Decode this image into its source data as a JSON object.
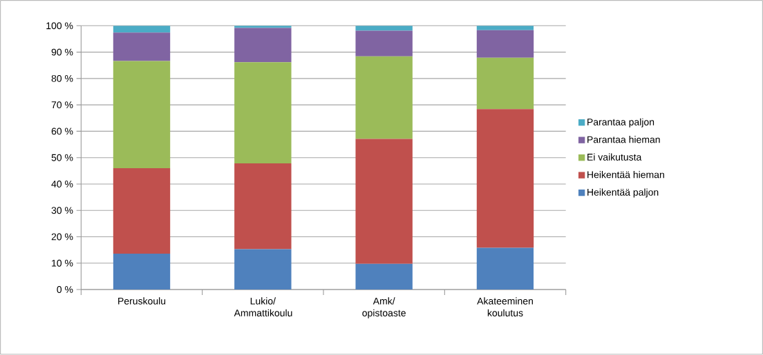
{
  "chart_data": {
    "type": "bar",
    "stacked": true,
    "categories": [
      "Peruskoulu",
      "Lukio/ Ammattikoulu",
      "Amk/ opistoaste",
      "Akateeminen koulutus"
    ],
    "series": [
      {
        "name": "Heikentää paljon",
        "color": "#4f81bd",
        "values": [
          13.6,
          15.3,
          9.7,
          15.8
        ]
      },
      {
        "name": "Heikentää hieman",
        "color": "#c0504d",
        "values": [
          32.4,
          32.5,
          47.4,
          52.6
        ]
      },
      {
        "name": "Ei vaikutusta",
        "color": "#9bbb59",
        "values": [
          40.6,
          38.4,
          31.3,
          19.5
        ]
      },
      {
        "name": "Parantaa hieman",
        "color": "#8064a2",
        "values": [
          10.8,
          13.0,
          9.7,
          10.4
        ]
      },
      {
        "name": "Parantaa paljon",
        "color": "#4bacc6",
        "values": [
          2.6,
          0.8,
          1.9,
          1.7
        ]
      }
    ],
    "ylim": [
      0,
      100
    ],
    "yticks": [
      {
        "value": 0,
        "label": "0 %"
      },
      {
        "value": 10,
        "label": "10 %"
      },
      {
        "value": 20,
        "label": "20 %"
      },
      {
        "value": 30,
        "label": "30 %"
      },
      {
        "value": 40,
        "label": "40 %"
      },
      {
        "value": 50,
        "label": "50 %"
      },
      {
        "value": 60,
        "label": "60 %"
      },
      {
        "value": 70,
        "label": "70 %"
      },
      {
        "value": 80,
        "label": "80 %"
      },
      {
        "value": 90,
        "label": "90 %"
      },
      {
        "value": 100,
        "label": "100 %"
      }
    ],
    "grid": "y",
    "legend": "right"
  }
}
